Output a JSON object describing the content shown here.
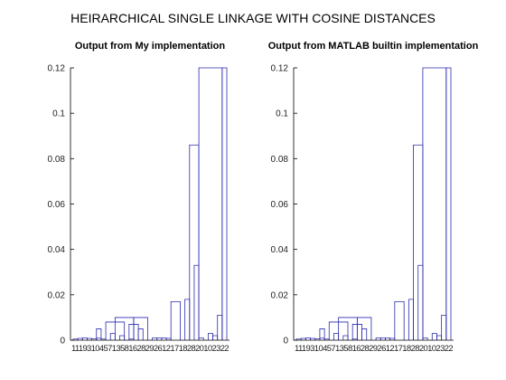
{
  "figure": {
    "suptitle": "HEIRARCHICAL SINGLE LINKAGE WITH COSINE DISTANCES"
  },
  "colors": {
    "link": "#2b2bb0",
    "axis": "#000000"
  },
  "chart_data": [
    {
      "type": "dendrogram",
      "title": "Output from My implementation",
      "xlabel": "",
      "ylabel": "",
      "ylim": [
        0,
        0.12
      ],
      "yticks": [
        "0",
        "0.02",
        "0.04",
        "0.06",
        "0.08",
        "0.1",
        "0.12"
      ],
      "leaf_labels_text": "11193104571358162829261217182820102322",
      "grid": false,
      "links": [
        [
          1,
          0.0005,
          2
        ],
        [
          2,
          0.0008,
          3
        ],
        [
          3,
          0.001,
          4
        ],
        [
          4,
          0.0008,
          5
        ],
        [
          5,
          0.0006,
          6
        ],
        [
          6,
          0.0009,
          7
        ],
        [
          7,
          0.0005,
          8
        ],
        [
          8,
          0.008,
          12
        ],
        [
          6,
          0.005,
          7
        ],
        [
          9,
          0.003,
          10
        ],
        [
          11,
          0.002,
          12
        ],
        [
          13,
          0.0005,
          14
        ],
        [
          13,
          0.007,
          15
        ],
        [
          15,
          0.005,
          16
        ],
        [
          14,
          0.01,
          17
        ],
        [
          10,
          0.01,
          14
        ],
        [
          18,
          0.001,
          19
        ],
        [
          19,
          0.001,
          20
        ],
        [
          20,
          0.001,
          21
        ],
        [
          21,
          0.0008,
          22
        ],
        [
          22,
          0.017,
          24
        ],
        [
          25,
          0.018,
          26
        ],
        [
          26,
          0.086,
          28
        ],
        [
          27,
          0.033,
          28
        ],
        [
          28,
          0.001,
          29
        ],
        [
          30,
          0.003,
          31
        ],
        [
          31,
          0.002,
          32
        ],
        [
          32,
          0.011,
          33
        ],
        [
          33,
          0.12,
          34
        ],
        [
          28,
          0.12,
          33
        ]
      ]
    },
    {
      "type": "dendrogram",
      "title": "Output from MATLAB builtin implementation",
      "xlabel": "",
      "ylabel": "",
      "ylim": [
        0,
        0.12
      ],
      "yticks": [
        "0",
        "0.02",
        "0.04",
        "0.06",
        "0.08",
        "0.1",
        "0.12"
      ],
      "leaf_labels_text": "11193104571358162829261217182820102322",
      "grid": false,
      "links": [
        [
          1,
          0.0005,
          2
        ],
        [
          2,
          0.0008,
          3
        ],
        [
          3,
          0.001,
          4
        ],
        [
          4,
          0.0008,
          5
        ],
        [
          5,
          0.0006,
          6
        ],
        [
          6,
          0.0009,
          7
        ],
        [
          7,
          0.0005,
          8
        ],
        [
          8,
          0.008,
          12
        ],
        [
          6,
          0.005,
          7
        ],
        [
          9,
          0.003,
          10
        ],
        [
          11,
          0.002,
          12
        ],
        [
          13,
          0.0005,
          14
        ],
        [
          13,
          0.007,
          15
        ],
        [
          15,
          0.005,
          16
        ],
        [
          14,
          0.01,
          17
        ],
        [
          10,
          0.01,
          14
        ],
        [
          18,
          0.001,
          19
        ],
        [
          19,
          0.001,
          20
        ],
        [
          20,
          0.001,
          21
        ],
        [
          21,
          0.0008,
          22
        ],
        [
          22,
          0.017,
          24
        ],
        [
          25,
          0.018,
          26
        ],
        [
          26,
          0.086,
          28
        ],
        [
          27,
          0.033,
          28
        ],
        [
          28,
          0.001,
          29
        ],
        [
          30,
          0.003,
          31
        ],
        [
          31,
          0.002,
          32
        ],
        [
          32,
          0.011,
          33
        ],
        [
          33,
          0.12,
          34
        ],
        [
          28,
          0.12,
          33
        ]
      ]
    }
  ]
}
